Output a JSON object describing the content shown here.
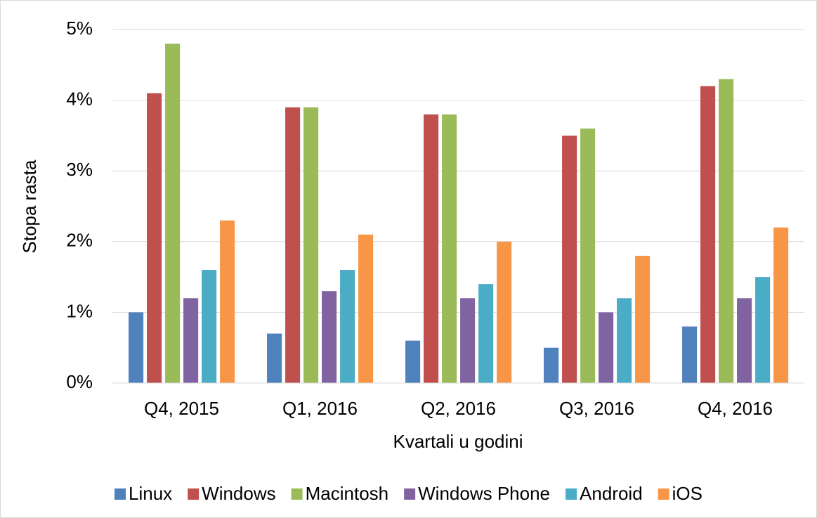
{
  "chart_data": {
    "type": "bar",
    "x_label": "Kvartali u godini",
    "y_label": "Stopa rasta",
    "categories": [
      "Q4, 2015",
      "Q1, 2016",
      "Q2, 2016",
      "Q3, 2016",
      "Q4, 2016"
    ],
    "series": [
      {
        "name": "Linux",
        "color": "#4f81bd",
        "values": [
          1.0,
          0.7,
          0.6,
          0.5,
          0.8
        ]
      },
      {
        "name": "Windows",
        "color": "#c0504d",
        "values": [
          4.1,
          3.9,
          3.8,
          3.5,
          4.2
        ]
      },
      {
        "name": "Macintosh",
        "color": "#9bbb59",
        "values": [
          4.8,
          3.9,
          3.8,
          3.6,
          4.3
        ]
      },
      {
        "name": "Windows Phone",
        "color": "#8064a2",
        "values": [
          1.2,
          1.3,
          1.2,
          1.0,
          1.2
        ]
      },
      {
        "name": "Android",
        "color": "#4bacc6",
        "values": [
          1.6,
          1.6,
          1.4,
          1.2,
          1.5
        ]
      },
      {
        "name": "iOS",
        "color": "#f79646",
        "values": [
          2.3,
          2.1,
          2.0,
          1.8,
          2.2
        ]
      }
    ],
    "ylim": [
      0,
      5
    ],
    "yticks": [
      {
        "value": 0,
        "label": "0%"
      },
      {
        "value": 1,
        "label": "1%"
      },
      {
        "value": 2,
        "label": "2%"
      },
      {
        "value": 3,
        "label": "3%"
      },
      {
        "value": 4,
        "label": "4%"
      },
      {
        "value": 5,
        "label": "5%"
      }
    ],
    "grid": true,
    "legend": "bottom"
  }
}
